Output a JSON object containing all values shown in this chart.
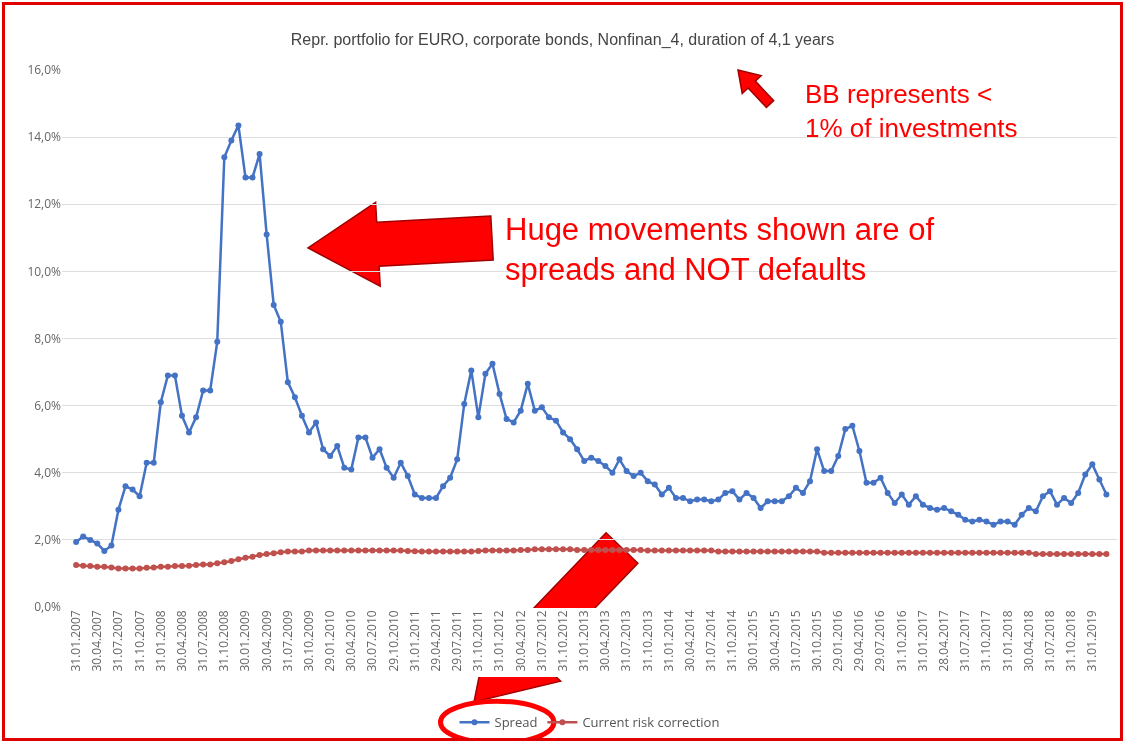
{
  "chart_data": {
    "type": "line",
    "title": "Repr. portfolio for EURO, corporate bonds, Nonfinan_4, duration of 4,1 years",
    "categories": [
      "31.01.2007",
      null,
      null,
      "30.04.2007",
      null,
      null,
      "31.07.2007",
      null,
      null,
      "31.10.2007",
      null,
      null,
      "31.01.2008",
      null,
      null,
      "30.04.2008",
      null,
      null,
      "31.07.2008",
      null,
      null,
      "31.10.2008",
      null,
      null,
      "30.01.2009",
      null,
      null,
      "30.04.2009",
      null,
      null,
      "31.07.2009",
      null,
      null,
      "30.10.2009",
      null,
      null,
      "29.01.2010",
      null,
      null,
      "30.04.2010",
      null,
      null,
      "30.07.2010",
      null,
      null,
      "29.10.2010",
      null,
      null,
      "31.01.2011",
      null,
      null,
      "29.04.2011",
      null,
      null,
      "29.07.2011",
      null,
      null,
      "31.10.2011",
      null,
      null,
      "31.01.2012",
      null,
      null,
      "30.04.2012",
      null,
      null,
      "31.07.2012",
      null,
      null,
      "31.10.2012",
      null,
      null,
      "31.01.2013",
      null,
      null,
      "30.04.2013",
      null,
      null,
      "31.07.2013",
      null,
      null,
      "31.10.2013",
      null,
      null,
      "31.01.2014",
      null,
      null,
      "30.04.2014",
      null,
      null,
      "31.07.2014",
      null,
      null,
      "31.10.2014",
      null,
      null,
      "30.01.2015",
      null,
      null,
      "30.04.2015",
      null,
      null,
      "31.07.2015",
      null,
      null,
      "30.10.2015",
      null,
      null,
      "29.01.2016",
      null,
      null,
      "29.04.2016",
      null,
      null,
      "29.07.2016",
      null,
      null,
      "31.10.2016",
      null,
      null,
      "31.01.2017",
      null,
      null,
      "28.04.2017",
      null,
      null,
      "31.07.2017",
      null,
      null,
      "31.10.2017",
      null,
      null,
      "31.01.2018",
      null,
      null,
      "30.04.2018",
      null,
      null,
      "31.07.2018",
      null,
      null,
      "31.10.2018",
      null,
      null,
      "31.01.2019",
      null,
      null
    ],
    "series": [
      {
        "name": "Spread",
        "color": "#4472c4",
        "values": [
          1.94,
          2.1,
          2.0,
          1.89,
          1.67,
          1.83,
          2.9,
          3.6,
          3.5,
          3.3,
          4.3,
          4.3,
          6.1,
          6.9,
          6.9,
          5.7,
          5.2,
          5.65,
          6.45,
          6.45,
          7.9,
          13.4,
          13.9,
          14.35,
          12.8,
          12.8,
          13.5,
          11.1,
          9.0,
          8.5,
          6.7,
          6.25,
          5.7,
          5.2,
          5.5,
          4.7,
          4.5,
          4.8,
          4.15,
          4.1,
          5.05,
          5.05,
          4.45,
          4.7,
          4.15,
          3.85,
          4.3,
          3.9,
          3.35,
          3.25,
          3.25,
          3.25,
          3.6,
          3.85,
          4.4,
          6.05,
          7.05,
          5.65,
          6.95,
          7.25,
          6.35,
          5.6,
          5.5,
          5.85,
          6.65,
          5.85,
          5.95,
          5.65,
          5.55,
          5.2,
          5.0,
          4.7,
          4.35,
          4.45,
          4.35,
          4.2,
          4.0,
          4.4,
          4.05,
          3.9,
          4.0,
          3.75,
          3.65,
          3.35,
          3.55,
          3.25,
          3.25,
          3.15,
          3.2,
          3.2,
          3.15,
          3.2,
          3.4,
          3.45,
          3.2,
          3.4,
          3.25,
          2.95,
          3.15,
          3.15,
          3.15,
          3.3,
          3.55,
          3.4,
          3.75,
          4.7,
          4.05,
          4.05,
          4.5,
          5.3,
          5.4,
          4.65,
          3.7,
          3.7,
          3.85,
          3.4,
          3.1,
          3.35,
          3.05,
          3.3,
          3.05,
          2.95,
          2.9,
          2.95,
          2.85,
          2.75,
          2.6,
          2.55,
          2.6,
          2.55,
          2.45,
          2.55,
          2.55,
          2.45,
          2.75,
          2.95,
          2.85,
          3.3,
          3.45,
          3.05,
          3.25,
          3.1,
          3.4,
          3.95,
          4.25,
          3.8,
          3.35
        ]
      },
      {
        "name": "Current risk correction",
        "color": "#c0504d",
        "values": [
          1.25,
          1.23,
          1.22,
          1.2,
          1.2,
          1.18,
          1.15,
          1.15,
          1.15,
          1.15,
          1.17,
          1.18,
          1.2,
          1.2,
          1.22,
          1.22,
          1.23,
          1.25,
          1.27,
          1.27,
          1.3,
          1.33,
          1.37,
          1.42,
          1.47,
          1.5,
          1.55,
          1.58,
          1.6,
          1.63,
          1.65,
          1.65,
          1.65,
          1.68,
          1.68,
          1.68,
          1.68,
          1.68,
          1.68,
          1.68,
          1.68,
          1.68,
          1.68,
          1.68,
          1.68,
          1.68,
          1.68,
          1.67,
          1.66,
          1.65,
          1.65,
          1.65,
          1.65,
          1.65,
          1.65,
          1.65,
          1.65,
          1.67,
          1.68,
          1.68,
          1.68,
          1.68,
          1.68,
          1.7,
          1.7,
          1.72,
          1.72,
          1.72,
          1.72,
          1.72,
          1.72,
          1.7,
          1.7,
          1.7,
          1.7,
          1.7,
          1.7,
          1.7,
          1.7,
          1.7,
          1.7,
          1.68,
          1.68,
          1.68,
          1.68,
          1.68,
          1.68,
          1.68,
          1.68,
          1.68,
          1.68,
          1.65,
          1.65,
          1.65,
          1.65,
          1.65,
          1.65,
          1.65,
          1.65,
          1.65,
          1.65,
          1.65,
          1.65,
          1.65,
          1.65,
          1.65,
          1.62,
          1.62,
          1.62,
          1.62,
          1.62,
          1.62,
          1.62,
          1.62,
          1.62,
          1.62,
          1.62,
          1.62,
          1.62,
          1.62,
          1.62,
          1.62,
          1.62,
          1.62,
          1.62,
          1.62,
          1.62,
          1.62,
          1.62,
          1.62,
          1.62,
          1.62,
          1.62,
          1.62,
          1.62,
          1.62,
          1.58,
          1.58,
          1.58,
          1.58,
          1.58,
          1.58,
          1.58,
          1.58,
          1.58,
          1.58,
          1.58
        ]
      }
    ],
    "ylim": [
      0,
      16
    ],
    "yticks": [
      {
        "value": 0,
        "label": "0,0%"
      },
      {
        "value": 2,
        "label": "2,0%"
      },
      {
        "value": 4,
        "label": "4,0%"
      },
      {
        "value": 6,
        "label": "6,0%"
      },
      {
        "value": 8,
        "label": "8,0%"
      },
      {
        "value": 10,
        "label": "10,0%"
      },
      {
        "value": 12,
        "label": "12,0%"
      },
      {
        "value": 14,
        "label": "14,0%"
      },
      {
        "value": 16,
        "label": "16,0%"
      }
    ],
    "grid": "y",
    "legend": "bottom",
    "marker": "circle",
    "line_style": "solid",
    "annotations": [
      "BB represents < 1% of investments",
      "Huge movements shown are of spreads and NOT defaults"
    ]
  }
}
